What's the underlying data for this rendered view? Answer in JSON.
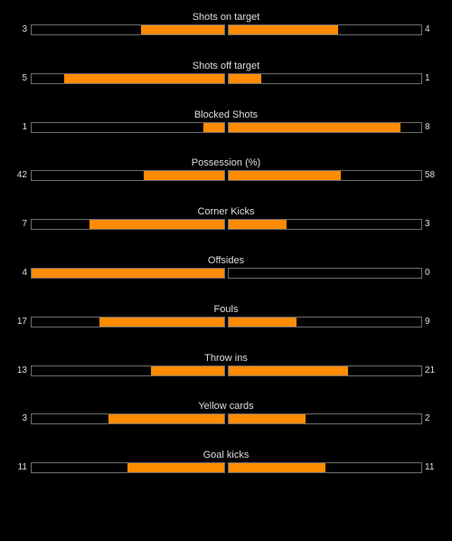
{
  "colors": {
    "background": "#000000",
    "bar_fill": "#ff8c00",
    "bar_border": "#6b6b6b",
    "text": "#dddddd"
  },
  "stats": [
    {
      "label": "Shots on target",
      "home": 3,
      "away": 4,
      "home_fraction": 0.43,
      "away_fraction": 0.57
    },
    {
      "label": "Shots off target",
      "home": 5,
      "away": 1,
      "home_fraction": 0.83,
      "away_fraction": 0.17
    },
    {
      "label": "Blocked Shots",
      "home": 1,
      "away": 8,
      "home_fraction": 0.11,
      "away_fraction": 0.89
    },
    {
      "label": "Possession (%)",
      "home": 42,
      "away": 58,
      "home_fraction": 0.42,
      "away_fraction": 0.58
    },
    {
      "label": "Corner Kicks",
      "home": 7,
      "away": 3,
      "home_fraction": 0.7,
      "away_fraction": 0.3
    },
    {
      "label": "Offsides",
      "home": 4,
      "away": 0,
      "home_fraction": 1.0,
      "away_fraction": 0.0
    },
    {
      "label": "Fouls",
      "home": 17,
      "away": 9,
      "home_fraction": 0.65,
      "away_fraction": 0.35
    },
    {
      "label": "Throw ins",
      "home": 13,
      "away": 21,
      "home_fraction": 0.38,
      "away_fraction": 0.62
    },
    {
      "label": "Yellow cards",
      "home": 3,
      "away": 2,
      "home_fraction": 0.6,
      "away_fraction": 0.4
    },
    {
      "label": "Goal kicks",
      "home": 11,
      "away": 11,
      "home_fraction": 0.5,
      "away_fraction": 0.5
    }
  ]
}
